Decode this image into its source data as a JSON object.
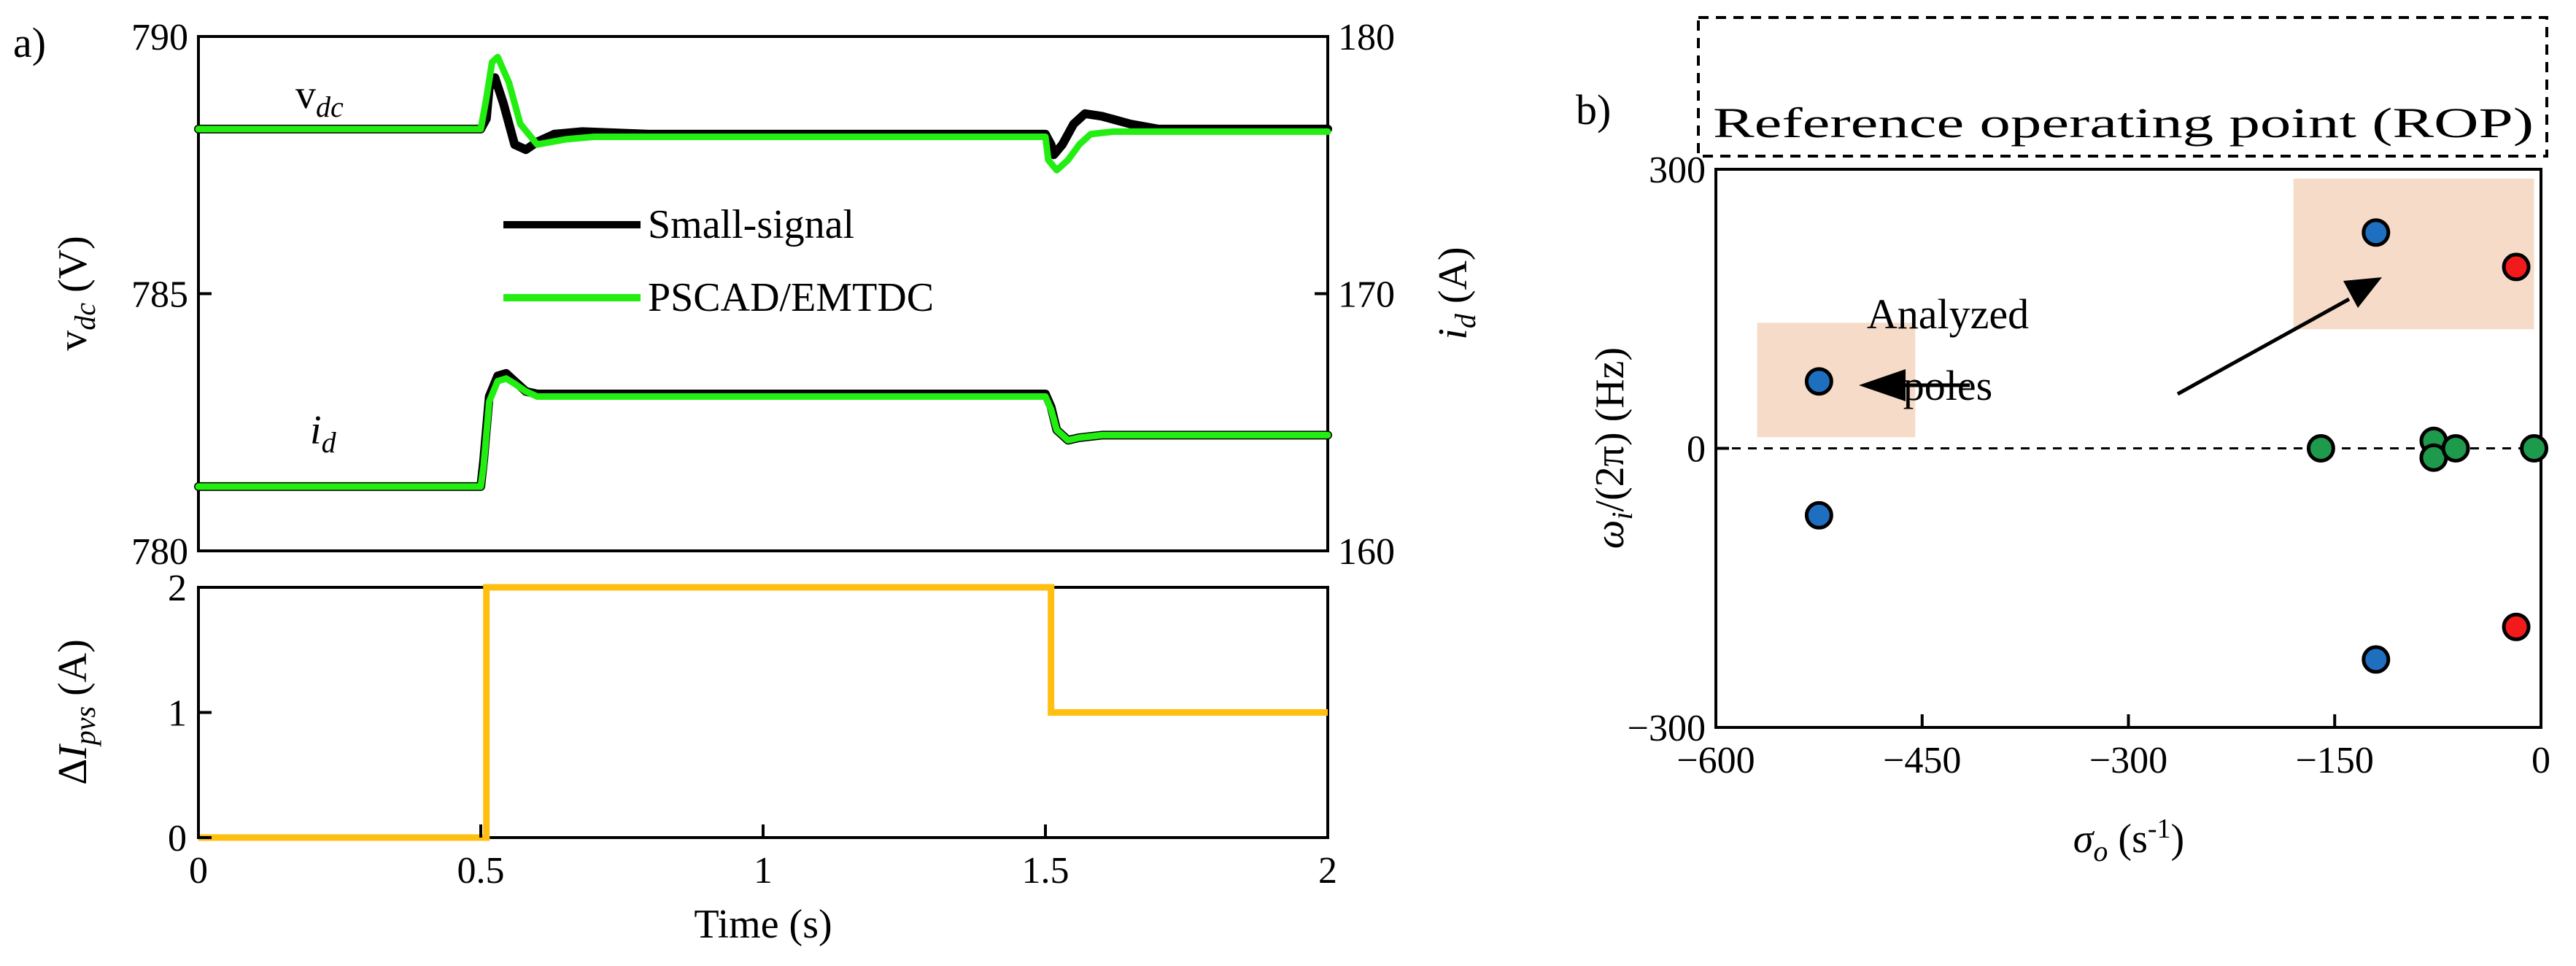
{
  "colors": {
    "small_signal": "#000000",
    "pscad": "#22ee11",
    "step": "#ffbf10",
    "pole_blue": "#1f6fc1",
    "pole_red": "#f21b1b",
    "pole_green": "#1e9a4c",
    "highlight": "#f6dcc8"
  },
  "chart_data": [
    {
      "id": "a",
      "panel_label": "a)",
      "type": "line",
      "subplot": "top",
      "xlim": [
        0,
        2
      ],
      "ylim_left": [
        780,
        790
      ],
      "ylim_right": [
        160,
        180
      ],
      "yticks_left": [
        "790",
        "785",
        "780"
      ],
      "yticks_left_values": [
        790,
        785,
        780
      ],
      "yticks_right": [
        "180",
        "170",
        "160"
      ],
      "yticks_right_values": [
        180,
        170,
        160
      ],
      "ylabel_left": {
        "main": "v",
        "sub": "dc",
        "unit": " (V)"
      },
      "ylabel_right": {
        "main": "i",
        "sub": "d",
        "unit": " (A)"
      },
      "annotation_vdc": {
        "main": "v",
        "sub": "dc"
      },
      "annotation_id": {
        "main": "i",
        "sub": "d"
      },
      "legend": [
        "Small-signal",
        "PSCAD/EMTDC"
      ],
      "series": [
        {
          "name": "Small-signal v_dc",
          "axis": "left",
          "color_key": "small_signal",
          "x": [
            0,
            0.5,
            0.51,
            0.515,
            0.525,
            0.54,
            0.56,
            0.58,
            0.6,
            0.63,
            0.68,
            0.8,
            1.0,
            1.2,
            1.4,
            1.5,
            1.51,
            1.515,
            1.53,
            1.55,
            1.57,
            1.6,
            1.65,
            1.7,
            2.0
          ],
          "y": [
            788.2,
            788.2,
            788.4,
            789.0,
            789.2,
            788.7,
            787.9,
            787.8,
            787.95,
            788.1,
            788.15,
            788.1,
            788.1,
            788.1,
            788.1,
            788.1,
            787.9,
            787.7,
            787.9,
            788.3,
            788.5,
            788.45,
            788.3,
            788.2,
            788.2
          ]
        },
        {
          "name": "PSCAD/EMTDC v_dc",
          "axis": "left",
          "color_key": "pscad",
          "x": [
            0,
            0.5,
            0.51,
            0.52,
            0.53,
            0.55,
            0.57,
            0.6,
            0.65,
            0.7,
            0.8,
            1.0,
            1.2,
            1.4,
            1.5,
            1.505,
            1.52,
            1.54,
            1.56,
            1.58,
            1.62,
            1.7,
            2.0
          ],
          "y": [
            788.2,
            788.2,
            788.8,
            789.5,
            789.6,
            789.1,
            788.3,
            787.9,
            788.0,
            788.05,
            788.05,
            788.05,
            788.05,
            788.05,
            788.05,
            787.6,
            787.4,
            787.6,
            787.9,
            788.1,
            788.15,
            788.15,
            788.15
          ]
        },
        {
          "name": "Small-signal i_d",
          "axis": "right",
          "color_key": "small_signal",
          "x": [
            0,
            0.5,
            0.505,
            0.515,
            0.53,
            0.545,
            0.56,
            0.58,
            0.6,
            0.65,
            0.8,
            1.0,
            1.2,
            1.4,
            1.5,
            1.51,
            1.52,
            1.54,
            1.56,
            1.6,
            1.7,
            2.0
          ],
          "y": [
            162.5,
            162.5,
            163.5,
            166.0,
            166.8,
            166.9,
            166.6,
            166.2,
            166.1,
            166.1,
            166.1,
            166.1,
            166.1,
            166.1,
            166.1,
            165.6,
            164.7,
            164.3,
            164.4,
            164.5,
            164.5,
            164.5
          ]
        },
        {
          "name": "PSCAD/EMTDC i_d",
          "axis": "right",
          "color_key": "pscad",
          "x": [
            0,
            0.5,
            0.505,
            0.515,
            0.53,
            0.545,
            0.56,
            0.58,
            0.6,
            0.65,
            0.8,
            1.0,
            1.2,
            1.4,
            1.5,
            1.51,
            1.52,
            1.54,
            1.56,
            1.6,
            1.7,
            2.0
          ],
          "y": [
            162.5,
            162.5,
            163.3,
            165.8,
            166.6,
            166.7,
            166.5,
            166.2,
            166.0,
            166.0,
            166.0,
            166.0,
            166.0,
            166.0,
            166.0,
            165.5,
            164.7,
            164.3,
            164.4,
            164.5,
            164.5,
            164.5
          ]
        }
      ]
    },
    {
      "id": "a_bottom",
      "type": "line",
      "subplot": "bottom",
      "xlim": [
        0,
        2
      ],
      "ylim": [
        0,
        2
      ],
      "xticks": [
        "0",
        "0.5",
        "1",
        "1.5",
        "2"
      ],
      "xticks_values": [
        0,
        0.5,
        1,
        1.5,
        2
      ],
      "yticks": [
        "2",
        "1",
        "0"
      ],
      "yticks_values": [
        2,
        1,
        0
      ],
      "xlabel": "Time (s)",
      "ylabel": {
        "prefix": "Δ",
        "main": "I",
        "sub": "pvs",
        "unit": " (A)"
      },
      "series": [
        {
          "name": "ΔI_pvs",
          "color_key": "step",
          "x": [
            0,
            0.51,
            0.51,
            1.51,
            1.51,
            2.0
          ],
          "y": [
            0,
            0,
            2,
            2,
            1,
            1
          ]
        }
      ]
    },
    {
      "id": "b",
      "panel_label": "b)",
      "type": "scatter",
      "title": "Reference operating point (ROP)",
      "xlim": [
        -600,
        0
      ],
      "ylim": [
        -300,
        300
      ],
      "xticks": [
        "−600",
        "−450",
        "−300",
        "−150",
        "0"
      ],
      "xticks_values": [
        -600,
        -450,
        -300,
        -150,
        0
      ],
      "yticks": [
        "300",
        "0",
        "−300"
      ],
      "yticks_values": [
        300,
        0,
        -300
      ],
      "xlabel": {
        "main": "σ",
        "sub": "o",
        "unit": " (s",
        "sup": "-1",
        "close": ")"
      },
      "ylabel": {
        "main": "ω",
        "sub": "i",
        "unit": "/(2π) (Hz)"
      },
      "zero_line": "dashed",
      "annotation": [
        "Analyzed",
        "poles"
      ],
      "highlight_regions": [
        {
          "x": [
            -570,
            -455
          ],
          "y": [
            12,
            135
          ]
        },
        {
          "x": [
            -180,
            -5
          ],
          "y": [
            128,
            290
          ]
        }
      ],
      "series": [
        {
          "name": "blue poles",
          "color_key": "pole_blue",
          "points": [
            [
              -525,
              72
            ],
            [
              -525,
              -72
            ],
            [
              -120,
              232
            ],
            [
              -120,
              -227
            ]
          ]
        },
        {
          "name": "red poles",
          "color_key": "pole_red",
          "points": [
            [
              -18,
              195
            ],
            [
              -18,
              -192
            ]
          ]
        },
        {
          "name": "green poles",
          "color_key": "pole_green",
          "points": [
            [
              -160,
              0
            ],
            [
              -78,
              8
            ],
            [
              -78,
              -10
            ],
            [
              -62,
              0
            ],
            [
              -5,
              0
            ]
          ]
        }
      ]
    }
  ]
}
